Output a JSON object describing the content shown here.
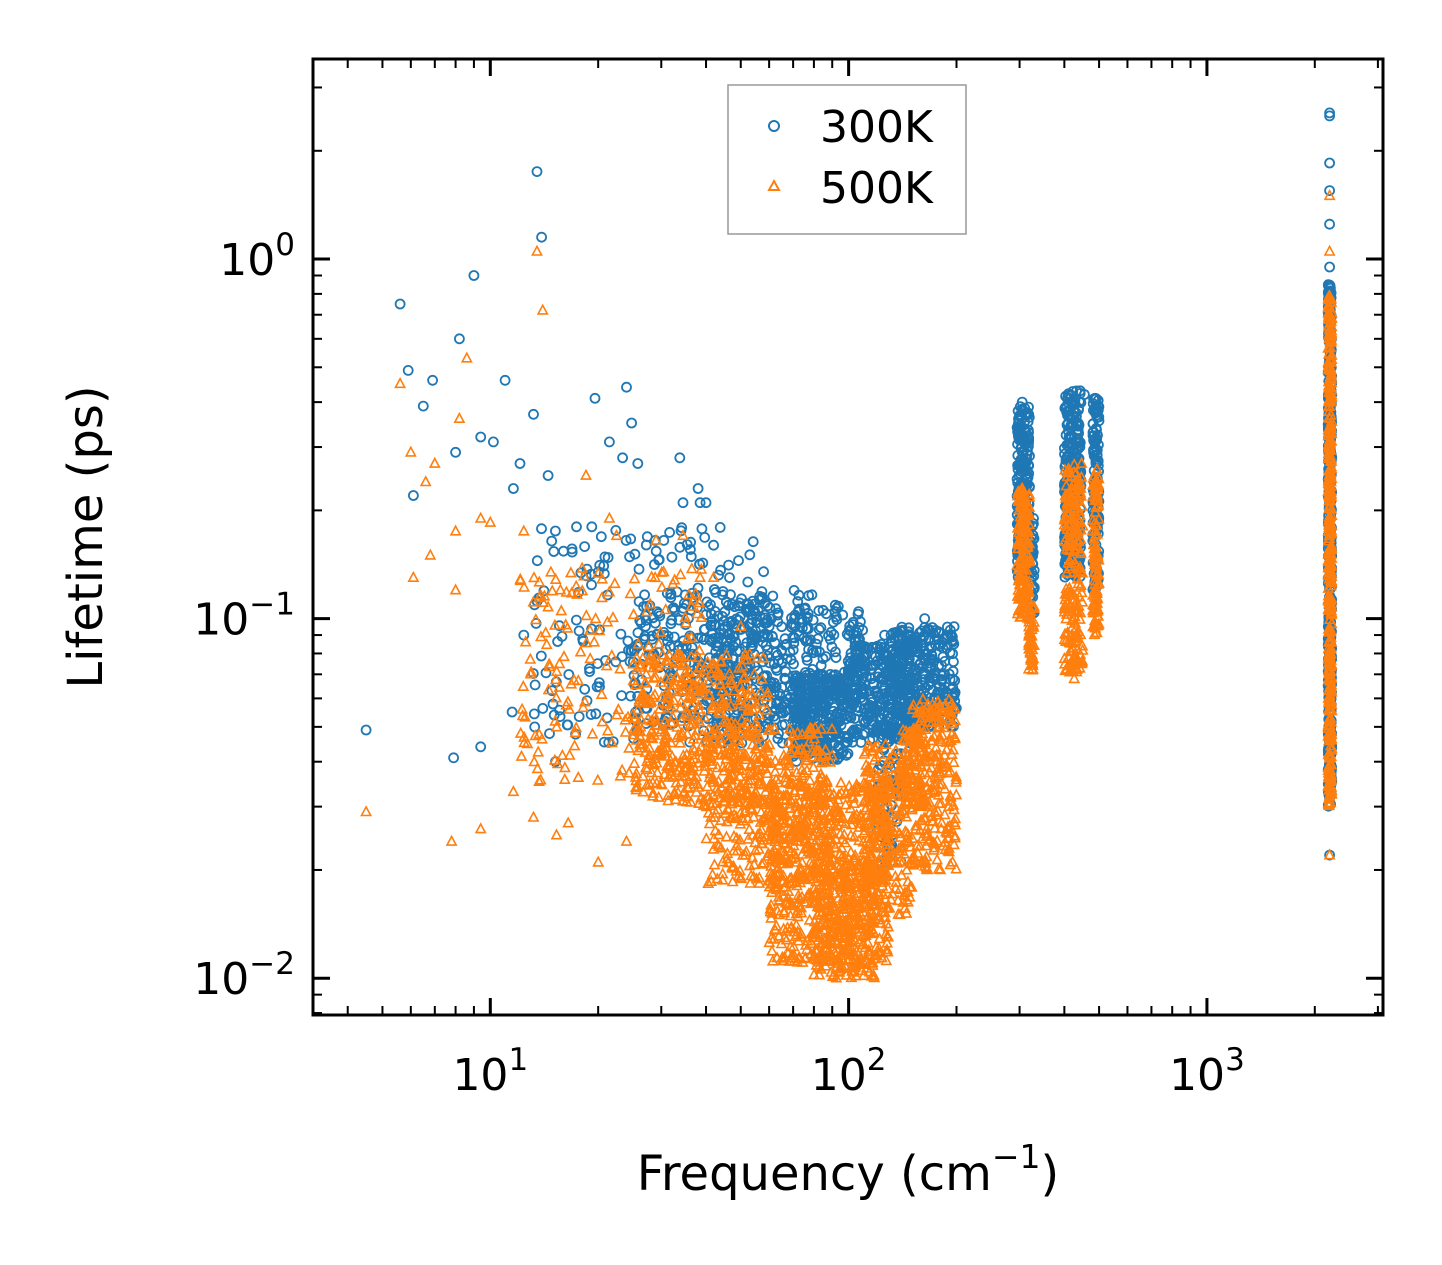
{
  "chart_data": {
    "type": "scatter",
    "title": "",
    "xlabel": "Frequency (cm",
    "xlabel_sup": "−1",
    "xlabel_end": ")",
    "ylabel": "Lifetime (ps)",
    "xscale": "log",
    "yscale": "log",
    "xlim": [
      3.2,
      3100
    ],
    "ylim": [
      0.0079,
      3.6
    ],
    "x_ticks": [
      {
        "value": 10,
        "base": "10",
        "exp": "1"
      },
      {
        "value": 100,
        "base": "10",
        "exp": "2"
      },
      {
        "value": 1000,
        "base": "10",
        "exp": "3"
      }
    ],
    "y_ticks": [
      {
        "value": 0.01,
        "base": "10",
        "exp": "−2"
      },
      {
        "value": 0.1,
        "base": "10",
        "exp": "−1"
      },
      {
        "value": 1,
        "base": "10",
        "exp": "0"
      }
    ],
    "legend": {
      "position": "upper-center",
      "entries": [
        {
          "name": "300K",
          "marker": "circle",
          "color": "#1f77b4"
        },
        {
          "name": "500K",
          "marker": "triangle",
          "color": "#ff7f0e"
        }
      ]
    },
    "series": [
      {
        "name": "300K",
        "marker": "circle",
        "color": "#1f77b4",
        "points": [
          [
            4.5,
            0.049
          ],
          [
            5.6,
            0.75
          ],
          [
            5.9,
            0.49
          ],
          [
            6.1,
            0.22
          ],
          [
            6.5,
            0.39
          ],
          [
            6.9,
            0.46
          ],
          [
            7.9,
            0.041
          ],
          [
            8.0,
            0.29
          ],
          [
            8.2,
            0.6
          ],
          [
            9.0,
            0.9
          ],
          [
            9.4,
            0.044
          ],
          [
            9.4,
            0.32
          ],
          [
            10.2,
            0.31
          ],
          [
            11.0,
            0.46
          ],
          [
            11.5,
            0.055
          ],
          [
            11.6,
            0.23
          ],
          [
            12.1,
            0.27
          ],
          [
            12.4,
            0.09
          ],
          [
            13.2,
            0.37
          ],
          [
            13.3,
            0.05
          ],
          [
            13.5,
            1.75
          ],
          [
            13.9,
            1.15
          ],
          [
            14.5,
            0.25
          ],
          [
            15.2,
            0.04
          ],
          [
            17.4,
            0.18
          ],
          [
            19.2,
            0.18
          ],
          [
            19.6,
            0.41
          ],
          [
            21.5,
            0.31
          ],
          [
            23.4,
            0.28
          ],
          [
            24.0,
            0.44
          ],
          [
            24.8,
            0.35
          ],
          [
            25.8,
            0.27
          ],
          [
            30.5,
            0.165
          ],
          [
            33.8,
            0.28
          ],
          [
            34.5,
            0.21
          ],
          [
            38.0,
            0.23
          ],
          [
            38.5,
            0.21
          ],
          [
            40.0,
            0.21
          ],
          [
            42.0,
            0.16
          ],
          [
            46.5,
            0.13
          ],
          [
            52.0,
            0.11
          ],
          [
            60.0,
            0.095
          ],
          [
            79.5,
            0.05
          ],
          [
            95.0,
            0.06
          ],
          [
            104.0,
            0.068
          ],
          [
            126.0,
            0.09
          ],
          [
            163.0,
            0.1
          ],
          [
            178.0,
            0.092
          ],
          [
            197.0,
            0.095
          ],
          [
            305.0,
            0.4
          ],
          [
            318.0,
            0.37
          ],
          [
            328.0,
            0.19
          ],
          [
            410.0,
            0.23
          ],
          [
            443.0,
            0.43
          ],
          [
            455.0,
            0.42
          ],
          [
            487.0,
            0.41
          ],
          [
            497.0,
            0.38
          ],
          [
            2200,
            2.5
          ],
          [
            2200,
            2.55
          ],
          [
            2200,
            1.85
          ],
          [
            2200,
            1.55
          ],
          [
            2200,
            1.25
          ],
          [
            2200,
            0.95
          ],
          [
            2200,
            0.022
          ]
        ],
        "clusters": [
          {
            "x": [
              13,
              60
            ],
            "y": [
              0.045,
              0.18
            ],
            "n": 200
          },
          {
            "x": [
              25,
              80
            ],
            "y": [
              0.05,
              0.12
            ],
            "n": 300
          },
          {
            "x": [
              40,
              110
            ],
            "y": [
              0.045,
              0.11
            ],
            "n": 350
          },
          {
            "x": [
              70,
              100
            ],
            "y": [
              0.04,
              0.07
            ],
            "n": 250
          },
          {
            "x": [
              100,
              150
            ],
            "y": [
              0.045,
              0.085
            ],
            "n": 300
          },
          {
            "x": [
              130,
              200
            ],
            "y": [
              0.05,
              0.095
            ],
            "n": 300
          },
          {
            "x": [
              120,
              140
            ],
            "y": [
              0.02,
              0.05
            ],
            "n": 60
          },
          {
            "x": [
              295,
              320
            ],
            "y": [
              0.13,
              0.39
            ],
            "n": 220
          },
          {
            "x": [
              320,
              330
            ],
            "y": [
              0.1,
              0.19
            ],
            "n": 40
          },
          {
            "x": [
              400,
              445
            ],
            "y": [
              0.13,
              0.43
            ],
            "n": 260
          },
          {
            "x": [
              480,
              500
            ],
            "y": [
              0.12,
              0.41
            ],
            "n": 130
          },
          {
            "x": [
              2180,
              2230
            ],
            "y": [
              0.03,
              0.85
            ],
            "n": 450
          }
        ]
      },
      {
        "name": "500K",
        "marker": "triangle",
        "color": "#ff7f0e",
        "points": [
          [
            4.5,
            0.029
          ],
          [
            5.6,
            0.45
          ],
          [
            6.0,
            0.29
          ],
          [
            6.1,
            0.13
          ],
          [
            6.6,
            0.24
          ],
          [
            6.8,
            0.15
          ],
          [
            7.0,
            0.27
          ],
          [
            7.8,
            0.024
          ],
          [
            8.0,
            0.175
          ],
          [
            8.0,
            0.12
          ],
          [
            8.2,
            0.36
          ],
          [
            8.6,
            0.53
          ],
          [
            9.4,
            0.026
          ],
          [
            9.4,
            0.19
          ],
          [
            10.0,
            0.185
          ],
          [
            11.6,
            0.033
          ],
          [
            12.4,
            0.175
          ],
          [
            13.2,
            0.028
          ],
          [
            13.5,
            1.05
          ],
          [
            14.0,
            0.72
          ],
          [
            15.3,
            0.025
          ],
          [
            16.5,
            0.027
          ],
          [
            18.5,
            0.25
          ],
          [
            20.0,
            0.021
          ],
          [
            21.5,
            0.19
          ],
          [
            22.5,
            0.17
          ],
          [
            24.0,
            0.024
          ],
          [
            29.0,
            0.165
          ],
          [
            34.5,
            0.17
          ],
          [
            38.5,
            0.13
          ],
          [
            42.0,
            0.13
          ],
          [
            50.0,
            0.095
          ],
          [
            100.0,
            0.012
          ],
          [
            115.0,
            0.011
          ],
          [
            128.0,
            0.012
          ],
          [
            195.0,
            0.056
          ],
          [
            305.0,
            0.23
          ],
          [
            326.0,
            0.075
          ],
          [
            410.0,
            0.21
          ],
          [
            426.0,
            0.068
          ],
          [
            447.0,
            0.27
          ],
          [
            493.0,
            0.26
          ],
          [
            2200,
            1.5
          ],
          [
            2200,
            1.05
          ],
          [
            2200,
            0.022
          ]
        ],
        "clusters": [
          {
            "x": [
              12,
              40
            ],
            "y": [
              0.035,
              0.14
            ],
            "n": 200
          },
          {
            "x": [
              25,
              60
            ],
            "y": [
              0.03,
              0.08
            ],
            "n": 400
          },
          {
            "x": [
              40,
              90
            ],
            "y": [
              0.018,
              0.05
            ],
            "n": 450
          },
          {
            "x": [
              60,
              130
            ],
            "y": [
              0.011,
              0.035
            ],
            "n": 600
          },
          {
            "x": [
              80,
              120
            ],
            "y": [
              0.01,
              0.022
            ],
            "n": 300
          },
          {
            "x": [
              110,
              150
            ],
            "y": [
              0.015,
              0.045
            ],
            "n": 250
          },
          {
            "x": [
              150,
              200
            ],
            "y": [
              0.02,
              0.06
            ],
            "n": 250
          },
          {
            "x": [
              140,
              160
            ],
            "y": [
              0.03,
              0.05
            ],
            "n": 80
          },
          {
            "x": [
              295,
              320
            ],
            "y": [
              0.1,
              0.23
            ],
            "n": 170
          },
          {
            "x": [
              318,
              330
            ],
            "y": [
              0.07,
              0.11
            ],
            "n": 50
          },
          {
            "x": [
              400,
              450
            ],
            "y": [
              0.07,
              0.27
            ],
            "n": 230
          },
          {
            "x": [
              480,
              500
            ],
            "y": [
              0.09,
              0.25
            ],
            "n": 110
          },
          {
            "x": [
              2180,
              2230
            ],
            "y": [
              0.03,
              0.8
            ],
            "n": 400
          }
        ]
      }
    ]
  }
}
